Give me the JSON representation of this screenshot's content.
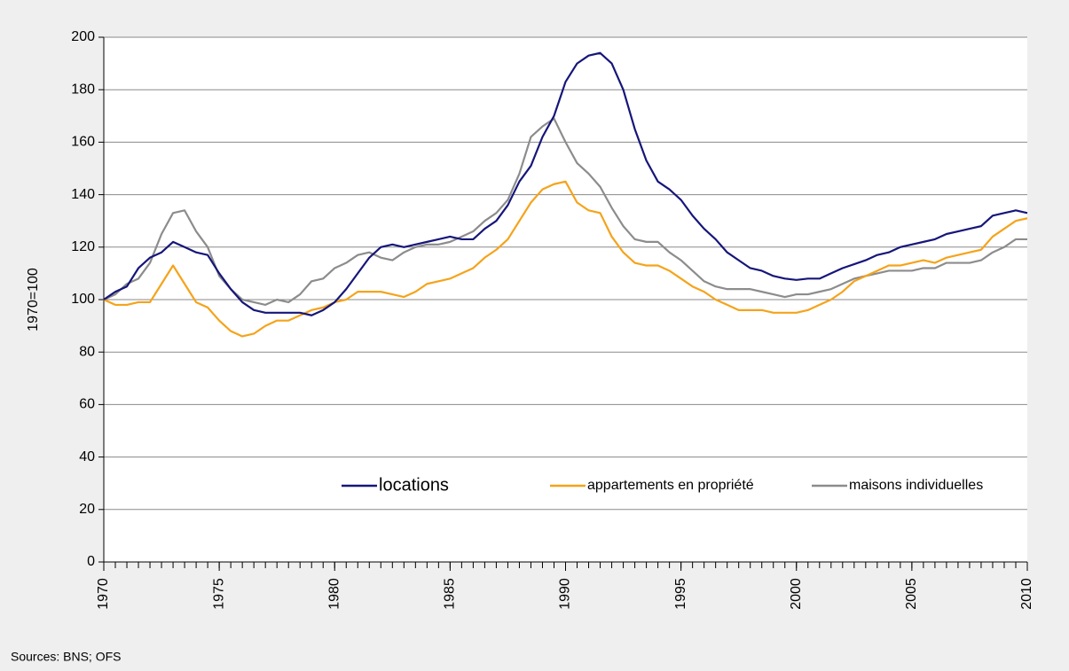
{
  "chart_data": {
    "type": "line",
    "y_label": "1970=100",
    "source": "Sources: BNS; OFS",
    "x": [
      1970,
      1970.5,
      1971,
      1971.5,
      1972,
      1972.5,
      1973,
      1973.5,
      1974,
      1974.5,
      1975,
      1975.5,
      1976,
      1976.5,
      1977,
      1977.5,
      1978,
      1978.5,
      1979,
      1979.5,
      1980,
      1980.5,
      1981,
      1981.5,
      1982,
      1982.5,
      1983,
      1983.5,
      1984,
      1984.5,
      1985,
      1985.5,
      1986,
      1986.5,
      1987,
      1987.5,
      1988,
      1988.5,
      1989,
      1989.5,
      1990,
      1990.5,
      1991,
      1991.5,
      1992,
      1992.5,
      1993,
      1993.5,
      1994,
      1994.5,
      1995,
      1995.5,
      1996,
      1996.5,
      1997,
      1997.5,
      1998,
      1998.5,
      1999,
      1999.5,
      2000,
      2000.5,
      2001,
      2001.5,
      2002,
      2002.5,
      2003,
      2003.5,
      2004,
      2004.5,
      2005,
      2005.5,
      2006,
      2006.5,
      2007,
      2007.5,
      2008,
      2008.5,
      2009,
      2009.5,
      2010
    ],
    "series": [
      {
        "name": "locations",
        "color": "#16167a",
        "values": [
          100,
          103,
          105,
          112,
          116,
          118,
          122,
          120,
          118,
          117,
          110,
          104,
          99,
          96,
          95,
          95,
          95,
          95,
          94,
          96,
          99,
          104,
          110,
          116,
          120,
          121,
          120,
          121,
          122,
          123,
          124,
          123,
          123,
          127,
          130,
          136,
          145,
          151,
          162,
          170,
          183,
          190,
          193,
          194,
          190,
          180,
          165,
          153,
          145,
          142,
          138,
          132,
          127,
          123,
          118,
          115,
          112,
          111,
          109,
          108,
          107.5,
          108,
          108,
          110,
          112,
          113.5,
          115,
          117,
          118,
          120,
          121,
          122,
          123,
          125,
          126,
          127,
          128,
          132,
          133,
          134,
          133
        ]
      },
      {
        "name": "appartements en propriété",
        "color": "#f5a31a",
        "values": [
          100,
          98,
          98,
          99,
          99,
          106,
          113,
          106,
          99,
          97,
          92,
          88,
          86,
          87,
          90,
          92,
          92,
          94,
          96,
          97,
          99,
          100,
          103,
          103,
          103,
          102,
          101,
          103,
          106,
          107,
          108,
          110,
          112,
          116,
          119,
          123,
          130,
          137,
          142,
          144,
          145,
          137,
          134,
          133,
          124,
          118,
          114,
          113,
          113,
          111,
          108,
          105,
          103,
          100,
          98,
          96,
          96,
          96,
          95,
          95,
          95,
          96,
          98,
          100,
          103,
          107,
          109,
          111,
          113,
          113,
          114,
          115,
          114,
          116,
          117,
          118,
          119,
          124,
          127,
          130,
          131
        ]
      },
      {
        "name": "maisons individuelles",
        "color": "#8c8c8c",
        "values": [
          100,
          102,
          106,
          108,
          114,
          125,
          133,
          134,
          126,
          120,
          109,
          104,
          100,
          99,
          98,
          100,
          99,
          102,
          107,
          108,
          112,
          114,
          117,
          118,
          116,
          115,
          118,
          120,
          121,
          121,
          122,
          124,
          126,
          130,
          133,
          138,
          148,
          162,
          166,
          169,
          160,
          152,
          148,
          143,
          135,
          128,
          123,
          122,
          122,
          118,
          115,
          111,
          107,
          105,
          104,
          104,
          104,
          103,
          102,
          101,
          102,
          102,
          103,
          104,
          106,
          108,
          109,
          110,
          111,
          111,
          111,
          112,
          112,
          114,
          114,
          114,
          115,
          118,
          120,
          123,
          123
        ]
      }
    ],
    "xlim": [
      1970,
      2010
    ],
    "xticks": [
      1970,
      1975,
      1980,
      1985,
      1990,
      1995,
      2000,
      2005,
      2010
    ],
    "ylim": [
      0,
      200
    ],
    "yticks": [
      0,
      20,
      40,
      60,
      80,
      100,
      120,
      140,
      160,
      180,
      200
    ],
    "grid": true
  }
}
